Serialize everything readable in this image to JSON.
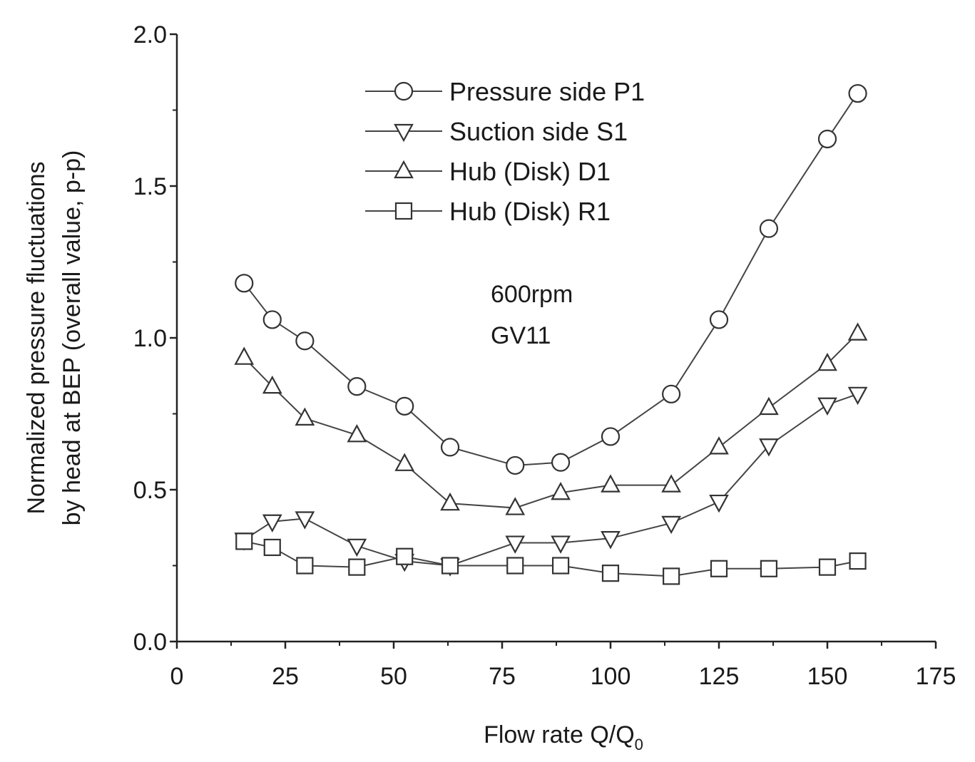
{
  "chart_data": {
    "type": "line",
    "title": "",
    "xlabel_main": "Flow rate Q/Q",
    "xlabel_sub": "0",
    "ylabel_line1": "Normalized pressure fluctuations",
    "ylabel_line2": "by head at BEP (overall value, p-p)",
    "xlim": [
      0,
      175
    ],
    "ylim": [
      0.0,
      2.0
    ],
    "xticks": [
      0,
      25,
      50,
      75,
      100,
      125,
      150,
      175
    ],
    "xtick_labels": [
      "0",
      "25",
      "50",
      "75",
      "100",
      "125",
      "150",
      "175"
    ],
    "yticks": [
      0.0,
      0.5,
      1.0,
      1.5,
      2.0
    ],
    "ytick_labels": [
      "0.0",
      "0.5",
      "1.0",
      "1.5",
      "2.0"
    ],
    "grid": false,
    "legend_position": "top-center",
    "annotations": [
      "600rpm",
      "GV11"
    ],
    "series": [
      {
        "name": "Pressure side P1",
        "marker": "circle",
        "x": [
          15.5,
          22,
          29.5,
          41.5,
          52.5,
          63,
          78,
          88.5,
          100,
          114,
          125,
          136.5,
          150,
          157
        ],
        "y": [
          1.18,
          1.06,
          0.99,
          0.84,
          0.775,
          0.64,
          0.58,
          0.59,
          0.675,
          0.815,
          1.06,
          1.36,
          1.655,
          1.805
        ]
      },
      {
        "name": "Suction side S1",
        "marker": "triangle-down",
        "x": [
          15.5,
          22,
          29.5,
          41.5,
          52.5,
          63,
          78,
          88.5,
          100,
          114,
          125,
          136.5,
          150,
          157
        ],
        "y": [
          0.335,
          0.395,
          0.405,
          0.315,
          0.265,
          0.25,
          0.325,
          0.325,
          0.34,
          0.39,
          0.46,
          0.645,
          0.78,
          0.815
        ]
      },
      {
        "name": "Hub (Disk)  D1",
        "marker": "triangle-up",
        "x": [
          15.5,
          22,
          29.5,
          41.5,
          52.5,
          63,
          78,
          88.5,
          100,
          114,
          125,
          136.5,
          150,
          157
        ],
        "y": [
          0.935,
          0.84,
          0.735,
          0.68,
          0.585,
          0.455,
          0.44,
          0.49,
          0.515,
          0.515,
          0.64,
          0.77,
          0.915,
          1.015
        ]
      },
      {
        "name": "Hub (Disk)  R1",
        "marker": "square",
        "x": [
          15.5,
          22,
          29.5,
          41.5,
          52.5,
          63,
          78,
          88.5,
          100,
          114,
          125,
          136.5,
          150,
          157
        ],
        "y": [
          0.33,
          0.31,
          0.25,
          0.245,
          0.28,
          0.25,
          0.25,
          0.25,
          0.225,
          0.215,
          0.24,
          0.24,
          0.245,
          0.265
        ]
      }
    ]
  }
}
